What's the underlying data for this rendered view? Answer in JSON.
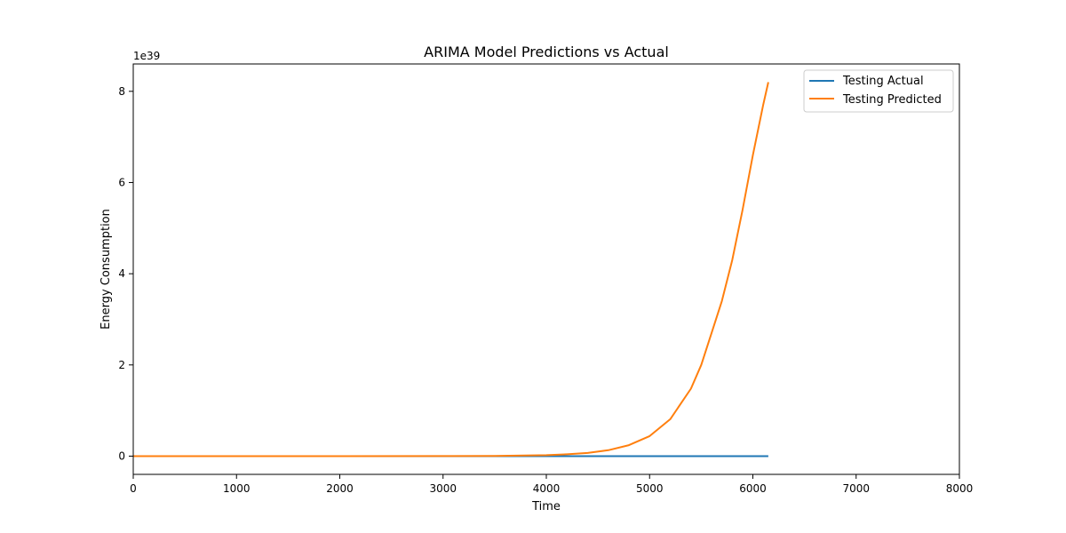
{
  "chart_data": {
    "type": "line",
    "title": "ARIMA Model Predictions vs Actual",
    "xlabel": "Time",
    "ylabel": "Energy Consumption",
    "y_offset_text": "1e39",
    "xlim": [
      0,
      8000
    ],
    "ylim": [
      -0.4,
      8.6
    ],
    "x_ticks": [
      0,
      1000,
      2000,
      3000,
      4000,
      5000,
      6000,
      7000,
      8000
    ],
    "y_ticks": [
      0,
      2,
      4,
      6,
      8
    ],
    "grid": false,
    "legend_position": "top-right",
    "series": [
      {
        "name": "Testing Actual",
        "color": "#1f77b4",
        "x": [
          0,
          6150
        ],
        "y": [
          0,
          0
        ]
      },
      {
        "name": "Testing Predicted",
        "color": "#ff7f0e",
        "x": [
          0,
          1000,
          2000,
          3000,
          3500,
          4000,
          4200,
          4400,
          4600,
          4800,
          5000,
          5200,
          5400,
          5500,
          5600,
          5700,
          5800,
          5900,
          6000,
          6100,
          6150
        ],
        "y": [
          0,
          0,
          0,
          0.0005,
          0.003,
          0.02,
          0.04,
          0.07,
          0.13,
          0.24,
          0.44,
          0.81,
          1.48,
          2.0,
          2.7,
          3.4,
          4.3,
          5.4,
          6.6,
          7.7,
          8.2
        ]
      }
    ]
  }
}
